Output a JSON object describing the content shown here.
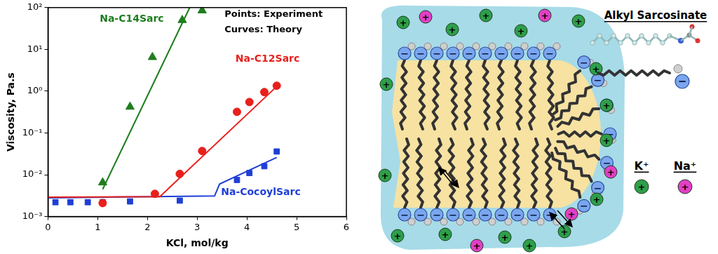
{
  "chart_data": {
    "type": "scatter",
    "x_label": "KCl, mol/kg",
    "y_label": "Viscosity, Pa.s",
    "annotations": [
      "Points: Experiment",
      "Curves: Theory"
    ],
    "xlim": [
      0,
      6
    ],
    "xticks": [
      0,
      1,
      2,
      3,
      4,
      5,
      6
    ],
    "ylim": [
      0.001,
      100
    ],
    "yticks": [
      {
        "value": 0.001,
        "label": "10⁻³"
      },
      {
        "value": 0.01,
        "label": "10⁻²"
      },
      {
        "value": 0.1,
        "label": "10⁻¹"
      },
      {
        "value": 1,
        "label": "10⁰"
      },
      {
        "value": 10,
        "label": "10¹"
      },
      {
        "value": 100,
        "label": "10²"
      }
    ],
    "log": "y",
    "grid": false,
    "series": [
      {
        "name": "Na-C14Sarc",
        "color": "#1e7d1e",
        "marker": "triangle",
        "x": [
          1.1,
          1.65,
          2.1,
          2.7,
          3.1
        ],
        "values": [
          0.0065,
          0.42,
          6.5,
          50,
          85
        ],
        "theory": {
          "type": "line",
          "line_style": "solid",
          "x": [
            1.1,
            2.85
          ],
          "values": [
            0.0045,
            100
          ]
        }
      },
      {
        "name": "Na-C12Sarc",
        "color": "#e8201c",
        "marker": "circle",
        "x": [
          1.1,
          2.15,
          2.65,
          3.1,
          3.8,
          4.05,
          4.35,
          4.6
        ],
        "values": [
          0.0021,
          0.0035,
          0.0105,
          0.037,
          0.32,
          0.55,
          0.95,
          1.35
        ],
        "theory": {
          "type": "line",
          "line_style": "solid",
          "x": [
            0,
            2.25,
            4.6
          ],
          "values": [
            0.0029,
            0.003,
            1.3
          ]
        }
      },
      {
        "name": "Na-CocoylSarc",
        "color": "#1f3fd6",
        "marker": "square",
        "x": [
          0.15,
          0.45,
          0.8,
          1.1,
          1.65,
          2.65,
          3.8,
          4.05,
          4.35,
          4.6
        ],
        "values": [
          0.0022,
          0.0022,
          0.0022,
          0.0022,
          0.0023,
          0.0024,
          0.0075,
          0.011,
          0.016,
          0.036
        ],
        "theory": {
          "type": "line",
          "line_style": "solid",
          "x": [
            0,
            3.35,
            3.45,
            4.6
          ],
          "values": [
            0.0028,
            0.0031,
            0.006,
            0.026
          ]
        }
      }
    ]
  },
  "diagram": {
    "title": "Alkyl Sarcosinate",
    "charges": {
      "cation": "+",
      "anion": "−"
    },
    "ions": [
      {
        "label": "K⁺",
        "color": "#2e9e4a"
      },
      {
        "label": "Na⁺",
        "color": "#e23fc6"
      }
    ]
  }
}
